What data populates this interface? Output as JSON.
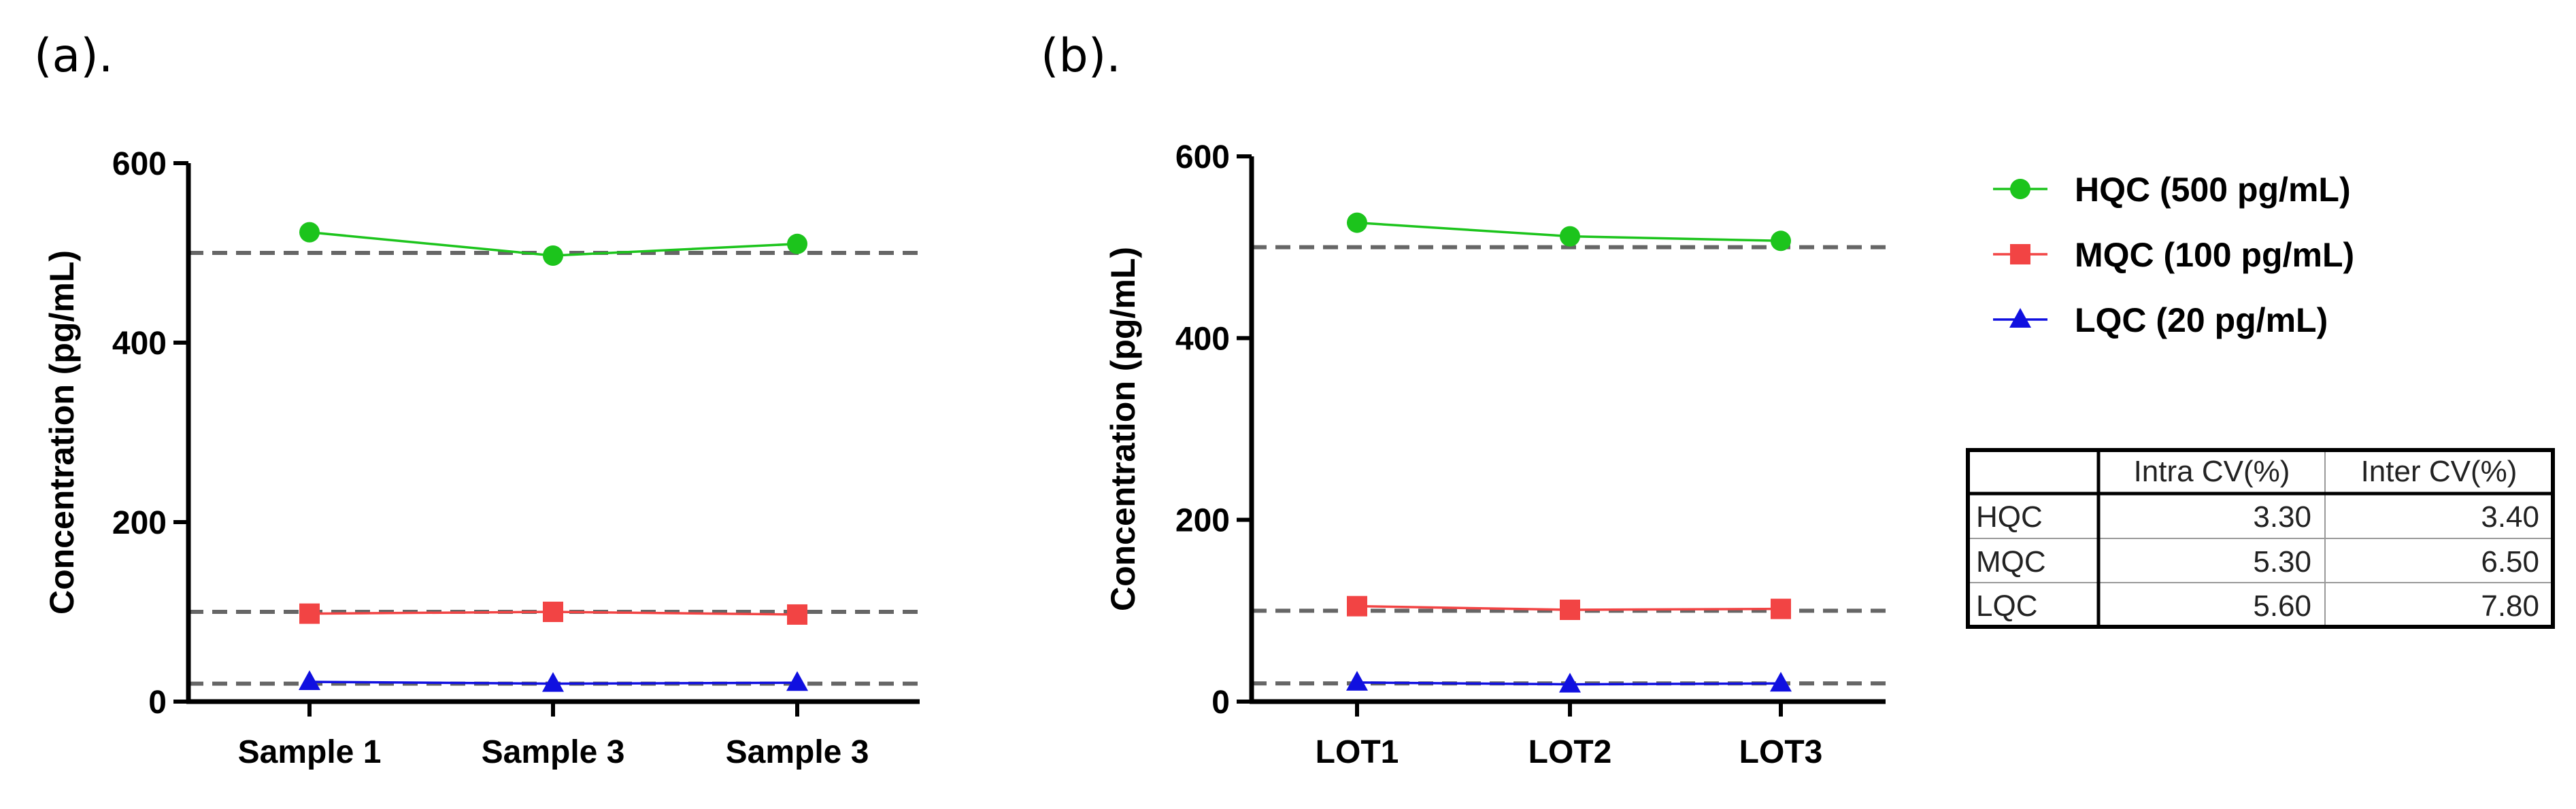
{
  "panels": {
    "a_label": "(a).",
    "b_label": "(b)."
  },
  "colors": {
    "hqc": "#1cc41c",
    "mqc": "#f24444",
    "lqc": "#1010e0",
    "reference": "#666666",
    "axis": "#000000"
  },
  "chart_data": [
    {
      "type": "line",
      "title": "",
      "xlabel": "",
      "ylabel": "Concentration (pg/mL)",
      "categories": [
        "Sample 1",
        "Sample 3",
        "Sample 3"
      ],
      "ylim": [
        0,
        600
      ],
      "yticks": [
        0,
        200,
        400,
        600
      ],
      "reference_lines": [
        500,
        100,
        20
      ],
      "series": [
        {
          "name": "HQC (500 pg/mL)",
          "marker": "circle",
          "values": [
            523,
            497,
            510
          ]
        },
        {
          "name": "MQC (100 pg/mL)",
          "marker": "square",
          "values": [
            98,
            100,
            97
          ]
        },
        {
          "name": "LQC (20 pg/mL)",
          "marker": "triangle",
          "values": [
            22,
            20,
            21
          ]
        }
      ]
    },
    {
      "type": "line",
      "title": "",
      "xlabel": "",
      "ylabel": "Concentration (pg/mL)",
      "categories": [
        "LOT1",
        "LOT2",
        "LOT3"
      ],
      "ylim": [
        0,
        600
      ],
      "yticks": [
        0,
        200,
        400,
        600
      ],
      "reference_lines": [
        500,
        100,
        20
      ],
      "series": [
        {
          "name": "HQC (500 pg/mL)",
          "marker": "circle",
          "values": [
            527,
            512,
            507
          ]
        },
        {
          "name": "MQC (100 pg/mL)",
          "marker": "square",
          "values": [
            105,
            101,
            102
          ]
        },
        {
          "name": "LQC (20 pg/mL)",
          "marker": "triangle",
          "values": [
            21,
            19,
            20
          ]
        }
      ]
    },
    {
      "type": "table",
      "columns": [
        "",
        "Intra CV(%)",
        "Inter CV(%)"
      ],
      "rows": [
        [
          "HQC",
          "3.30",
          "3.40"
        ],
        [
          "MQC",
          "5.30",
          "6.50"
        ],
        [
          "LQC",
          "5.60",
          "7.80"
        ]
      ]
    }
  ],
  "legend": {
    "placement": "right",
    "items": [
      {
        "label": "HQC (500 pg/mL)",
        "marker": "circle",
        "color_key": "hqc"
      },
      {
        "label": "MQC (100 pg/mL)",
        "marker": "square",
        "color_key": "mqc"
      },
      {
        "label": "LQC (20 pg/mL)",
        "marker": "triangle",
        "color_key": "lqc"
      }
    ]
  }
}
